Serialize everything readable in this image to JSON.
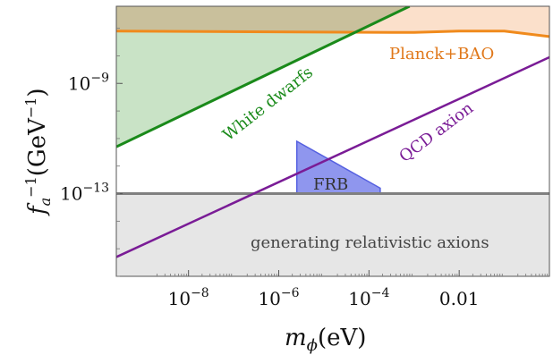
{
  "chart_data": {
    "type": "line",
    "xlabel": "m_ϕ(eV)",
    "ylabel": "f_a^{-1}(GeV^{-1})",
    "x_scale": "log",
    "y_scale": "log",
    "x_log_range": [
      -9.6,
      0.0
    ],
    "y_log_range": [
      -16.0,
      -6.2
    ],
    "x_ticks": [
      {
        "log": -8,
        "label_base": "10",
        "label_exp": "−8"
      },
      {
        "log": -6,
        "label_base": "10",
        "label_exp": "−6"
      },
      {
        "log": -4,
        "label_base": "10",
        "label_exp": "−4"
      },
      {
        "log": -2,
        "label_base": "0.01",
        "label_exp": ""
      }
    ],
    "y_ticks": [
      {
        "log": -9,
        "label_base": "10",
        "label_exp": "−9"
      },
      {
        "log": -13,
        "label_base": "10",
        "label_exp": "−13"
      }
    ],
    "series": [
      {
        "name": "White dwarfs",
        "color": "#1a8a1a",
        "fill": "#c9e3c6",
        "x": [
          -9.6,
          -3.1
        ],
        "y": [
          -11.3,
          -6.2
        ]
      },
      {
        "name": "Planck+BAO",
        "color": "#f08a1c",
        "fill": "#fbe0cb",
        "x": [
          -9.6,
          -3.5,
          -3.0,
          -2.0,
          -1.0,
          0.0
        ],
        "y": [
          -7.1,
          -7.15,
          -7.15,
          -7.1,
          -7.1,
          -7.3
        ]
      },
      {
        "name": "QCD axion",
        "color": "#7a1c96",
        "x": [
          -9.6,
          0.0
        ],
        "y": [
          -15.3,
          -8.05
        ]
      },
      {
        "name": "FRB",
        "color": "#5560e0",
        "fill": "#8f96ee",
        "x": [
          -5.6,
          -5.6,
          -3.75,
          -3.75
        ],
        "y": [
          -13.0,
          -11.1,
          -12.8,
          -13.0
        ]
      },
      {
        "name": "generating relativistic axions",
        "color": "#808080",
        "fill": "#e6e6e6",
        "x": [
          -9.6,
          0.0
        ],
        "y": [
          -13.0,
          -13.0
        ]
      }
    ],
    "region_labels": {
      "white_dwarfs": "White dwarfs",
      "planck": "Planck+BAO",
      "qcd": "QCD axion",
      "frb": "FRB",
      "relativistic": "generating relativistic axions"
    },
    "colors": {
      "overlap_fill": "#c9c09c"
    }
  }
}
